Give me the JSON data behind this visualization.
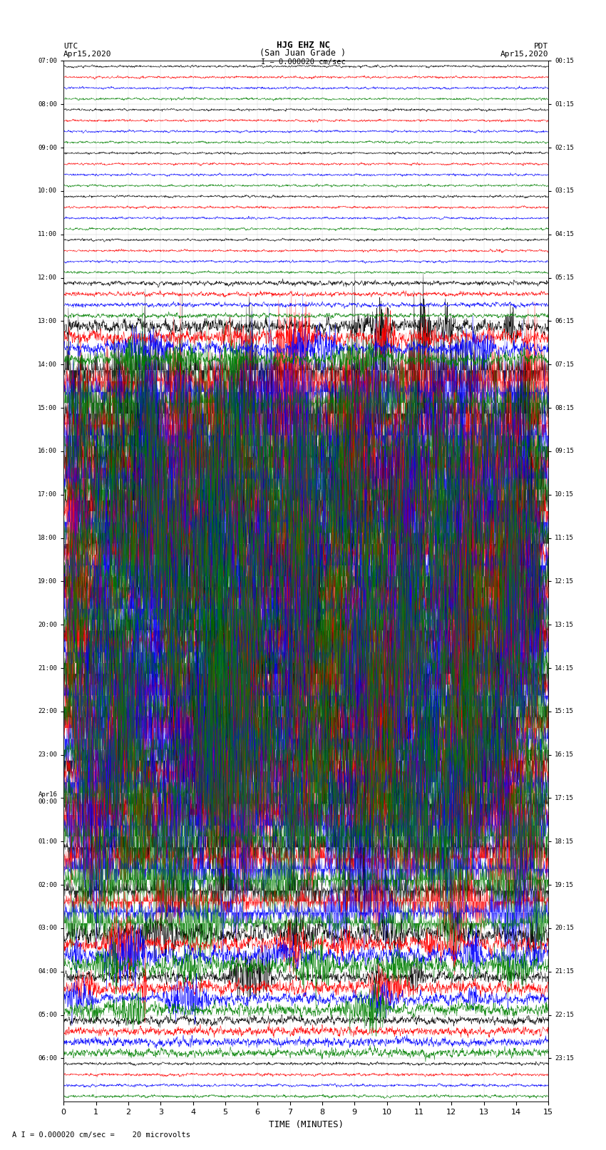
{
  "title_line1": "HJG EHZ NC",
  "title_line2": "(San Juan Grade )",
  "scale_label": "I = 0.000020 cm/sec",
  "bottom_label": "A I = 0.000020 cm/sec =    20 microvolts",
  "xlabel": "TIME (MINUTES)",
  "left_header": "UTC",
  "left_date": "Apr15,2020",
  "right_header": "PDT",
  "right_date": "Apr15,2020",
  "utc_times": [
    "07:00",
    "08:00",
    "09:00",
    "10:00",
    "11:00",
    "12:00",
    "13:00",
    "14:00",
    "15:00",
    "16:00",
    "17:00",
    "18:00",
    "19:00",
    "20:00",
    "21:00",
    "22:00",
    "23:00",
    "Apr16\n00:00",
    "01:00",
    "02:00",
    "03:00",
    "04:00",
    "05:00",
    "06:00"
  ],
  "pdt_times": [
    "00:15",
    "01:15",
    "02:15",
    "03:15",
    "04:15",
    "05:15",
    "06:15",
    "07:15",
    "08:15",
    "09:15",
    "10:15",
    "11:15",
    "12:15",
    "13:15",
    "14:15",
    "15:15",
    "16:15",
    "17:15",
    "18:15",
    "19:15",
    "20:15",
    "21:15",
    "22:15",
    "23:15"
  ],
  "n_rows": 24,
  "n_traces_per_row": 4,
  "trace_colors": [
    "black",
    "red",
    "blue",
    "green"
  ],
  "background_color": "white",
  "xmin": 0,
  "xmax": 15,
  "fig_width": 8.5,
  "fig_height": 16.13,
  "noise_seed": 42,
  "amplitude_profile": [
    0.04,
    0.04,
    0.04,
    0.04,
    0.04,
    0.08,
    0.4,
    1.2,
    2.0,
    2.2,
    2.2,
    2.2,
    2.2,
    2.2,
    2.2,
    2.2,
    2.2,
    1.8,
    1.0,
    0.7,
    0.5,
    0.35,
    0.15,
    0.05
  ]
}
